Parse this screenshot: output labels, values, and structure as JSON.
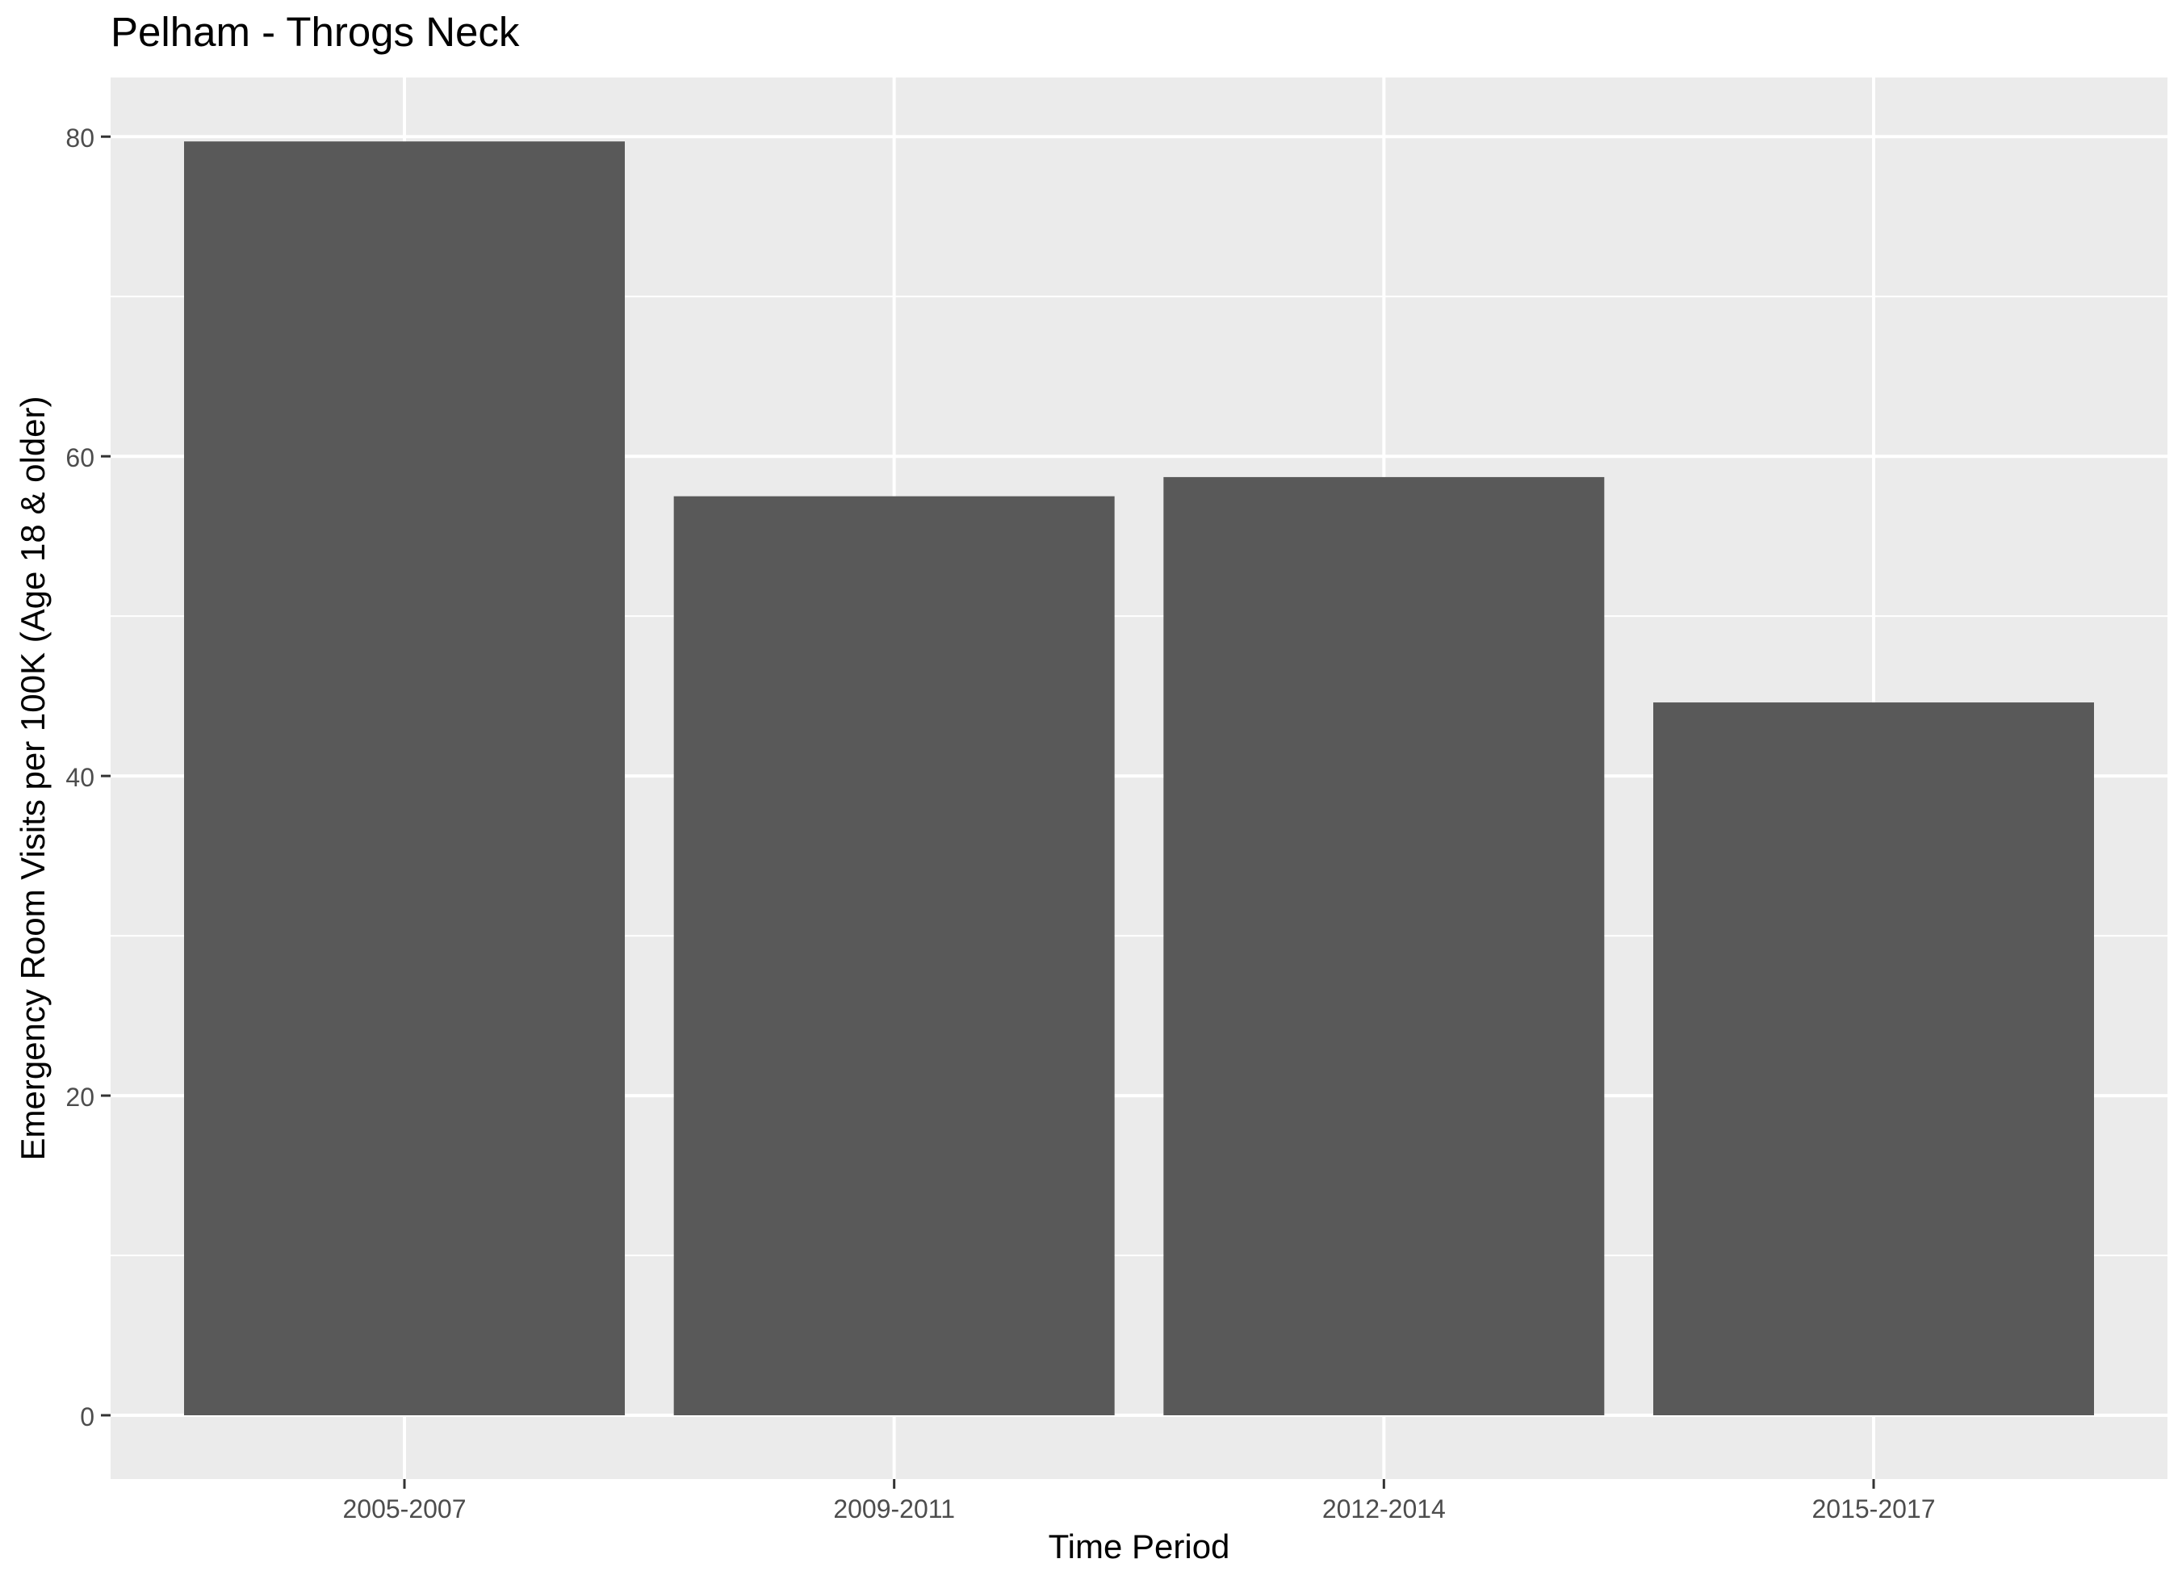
{
  "chart_data": {
    "type": "bar",
    "title": "Pelham - Throgs Neck",
    "xlabel": "Time Period",
    "ylabel": "Emergency Room Visits per 100K (Age 18 & older)",
    "categories": [
      "2005-2007",
      "2009-2011",
      "2012-2014",
      "2015-2017"
    ],
    "values": [
      79.7,
      57.5,
      58.7,
      44.6
    ],
    "ylim": [
      -3.99,
      83.7
    ],
    "yticks": [
      0,
      20,
      40,
      60,
      80
    ],
    "grid": true,
    "legend": "none",
    "colors": {
      "bar": "#595959",
      "panel": "#ebebeb",
      "grid": "#ffffff",
      "tick_text": "#4d4d4d",
      "tick_mark": "#333333"
    }
  }
}
